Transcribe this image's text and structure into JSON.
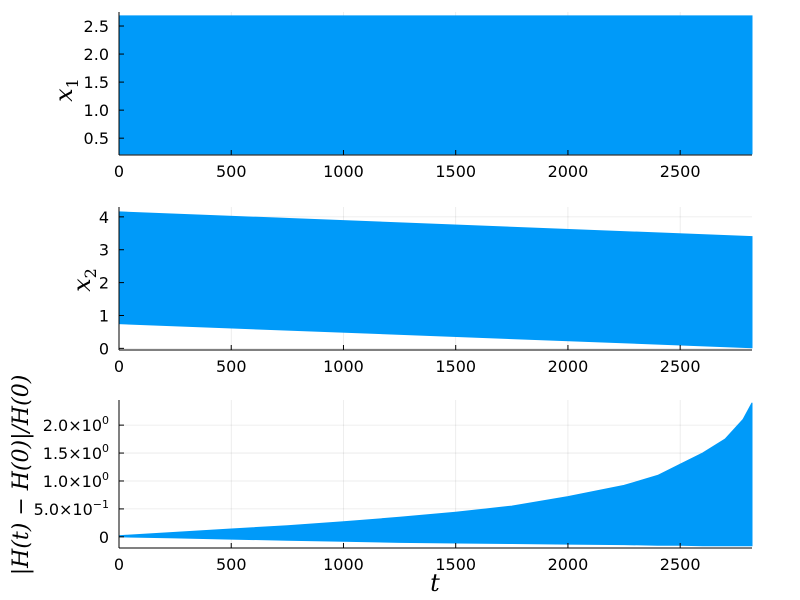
{
  "chart_data": [
    {
      "type": "area",
      "ylabel": {
        "base": "x",
        "sub": "1"
      },
      "xlabel": "",
      "xlim": [
        0,
        2820
      ],
      "ylim": [
        0.2,
        2.75
      ],
      "xticks": [
        0,
        500,
        1000,
        1500,
        2000,
        2500
      ],
      "x_tick_labels": [
        "0",
        "500",
        "1000",
        "1500",
        "2000",
        "2500"
      ],
      "yticks": [
        0.5,
        1.0,
        1.5,
        2.0,
        2.5
      ],
      "y_tick_labels": [
        "0.5",
        "1.0",
        "1.5",
        "2.0",
        "2.5"
      ],
      "grid": true,
      "legend": "none",
      "series": [
        {
          "color": "#009af9",
          "x": [
            0,
            2820
          ],
          "upper": [
            2.68,
            2.68
          ],
          "lower": [
            0.22,
            0.22
          ]
        }
      ]
    },
    {
      "type": "area",
      "ylabel": {
        "base": "x",
        "sub": "2"
      },
      "xlabel": "",
      "xlim": [
        0,
        2820
      ],
      "ylim": [
        -0.05,
        4.3
      ],
      "xticks": [
        0,
        500,
        1000,
        1500,
        2000,
        2500
      ],
      "x_tick_labels": [
        "0",
        "500",
        "1000",
        "1500",
        "2000",
        "2500"
      ],
      "yticks": [
        0,
        1,
        2,
        3,
        4
      ],
      "y_tick_labels": [
        "0",
        "1",
        "2",
        "3",
        "4"
      ],
      "grid": true,
      "legend": "none",
      "series": [
        {
          "color": "#009af9",
          "x": [
            0,
            2820
          ],
          "upper": [
            4.15,
            3.4
          ],
          "lower": [
            0.75,
            0.02
          ]
        }
      ]
    },
    {
      "type": "area",
      "ylabel": {
        "text": "|H(t) − H(0)|/H(0)"
      },
      "xlabel": "t",
      "xlim": [
        0,
        2820
      ],
      "ylim": [
        -0.2,
        2.45
      ],
      "xticks": [
        0,
        500,
        1000,
        1500,
        2000,
        2500
      ],
      "x_tick_labels": [
        "0",
        "500",
        "1000",
        "1500",
        "2000",
        "2500"
      ],
      "yticks": [
        0,
        0.5,
        1.0,
        1.5,
        2.0
      ],
      "y_tick_labels": [
        {
          "mant": "0",
          "exp": ""
        },
        {
          "mant": "5.0×10",
          "exp": "−1"
        },
        {
          "mant": "1.0×10",
          "exp": "0"
        },
        {
          "mant": "1.5×10",
          "exp": "0"
        },
        {
          "mant": "2.0×10",
          "exp": "0"
        }
      ],
      "grid": true,
      "legend": "none",
      "series": [
        {
          "color": "#009af9",
          "x": [
            0,
            250,
            500,
            750,
            1000,
            1250,
            1500,
            1750,
            2000,
            2250,
            2400,
            2500,
            2600,
            2700,
            2780,
            2820
          ],
          "upper": [
            0.02,
            0.08,
            0.14,
            0.2,
            0.27,
            0.35,
            0.44,
            0.55,
            0.72,
            0.92,
            1.1,
            1.3,
            1.5,
            1.75,
            2.1,
            2.4
          ],
          "lower": [
            0.0,
            -0.02,
            -0.04,
            -0.06,
            -0.08,
            -0.1,
            -0.11,
            -0.12,
            -0.13,
            -0.14,
            -0.15,
            -0.15,
            -0.16,
            -0.16,
            -0.16,
            -0.16
          ]
        }
      ]
    }
  ]
}
